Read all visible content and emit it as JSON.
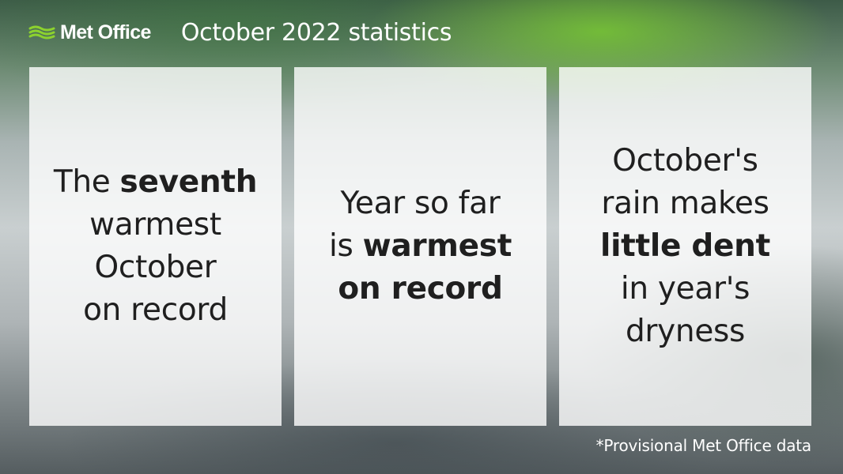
{
  "brand": {
    "name": "Met Office",
    "icon": "met-office-logo-icon",
    "accent_color": "#8cd22e"
  },
  "header": {
    "title": "October 2022 statistics"
  },
  "cards": [
    {
      "lines": [
        {
          "normal": "The ",
          "bold": "seventh"
        },
        {
          "normal": "warmest",
          "bold": ""
        },
        {
          "normal": "October",
          "bold": ""
        },
        {
          "normal": "on record",
          "bold": ""
        }
      ]
    },
    {
      "lines": [
        {
          "normal": "Year so far",
          "bold": ""
        },
        {
          "normal": "is ",
          "bold": "warmest"
        },
        {
          "normal": "",
          "bold": "on record"
        }
      ]
    },
    {
      "lines": [
        {
          "normal": "October's",
          "bold": ""
        },
        {
          "normal": "rain makes",
          "bold": ""
        },
        {
          "normal": "",
          "bold": "little dent"
        },
        {
          "normal": "in year's",
          "bold": ""
        },
        {
          "normal": "dryness",
          "bold": ""
        }
      ]
    }
  ],
  "footnote": "*Provisional Met Office data"
}
